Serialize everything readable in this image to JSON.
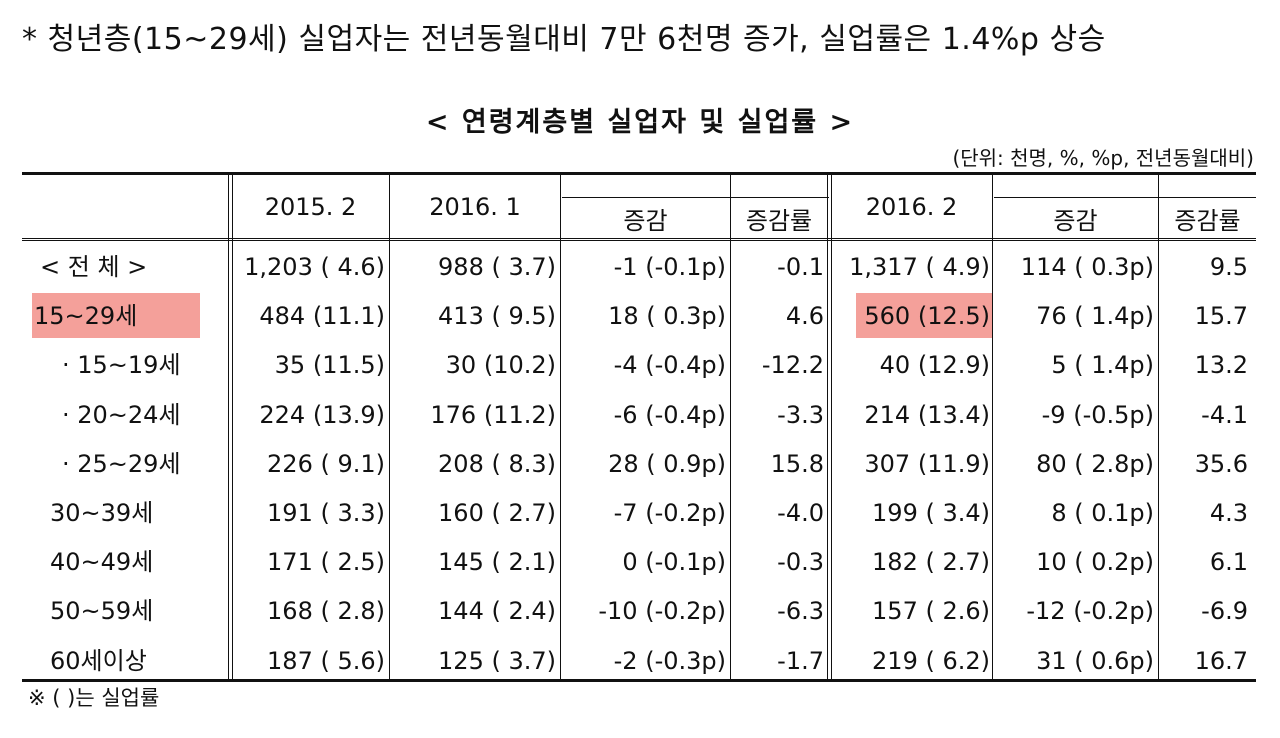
{
  "headline": "* 청년층(15~29세) 실업자는 전년동월대비 7만 6천명 증가, 실업률은 1.4%p 상승",
  "caption": "< 연령계층별 실업자 및 실업률 >",
  "unit_note": "(단위: 천명, %, %p, 전년동월대비)",
  "footnote": "※ (   )는 실업률",
  "columns": {
    "c2015_2": "2015. 2",
    "c2016_1": "2016. 1",
    "change": "증감",
    "change_rate": "증감률",
    "c2016_2": "2016. 2",
    "change2": "증감",
    "change_rate2": "증감률"
  },
  "highlight_color": "#f4a09a",
  "rows": [
    {
      "label": "< 전    체 >",
      "v2015": "1,203 ( 4.6)",
      "v2016_1": "988 ( 3.7)",
      "chg1": "-1 (-0.1p)",
      "rate1": "-0.1",
      "v2016_2": "1,317 ( 4.9)",
      "chg2": "114 ( 0.3p)",
      "rate2": "9.5"
    },
    {
      "label": "15~29세",
      "v2015": "484 (11.1)",
      "v2016_1": "413 ( 9.5)",
      "chg1": "18 ( 0.3p)",
      "rate1": "4.6",
      "v2016_2": "560 (12.5)",
      "chg2": "76 ( 1.4p)",
      "rate2": "15.7"
    },
    {
      "label": "· 15~19세",
      "v2015": "35 (11.5)",
      "v2016_1": "30 (10.2)",
      "chg1": "-4 (-0.4p)",
      "rate1": "-12.2",
      "v2016_2": "40 (12.9)",
      "chg2": "5 ( 1.4p)",
      "rate2": "13.2"
    },
    {
      "label": "· 20~24세",
      "v2015": "224 (13.9)",
      "v2016_1": "176 (11.2)",
      "chg1": "-6 (-0.4p)",
      "rate1": "-3.3",
      "v2016_2": "214 (13.4)",
      "chg2": "-9 (-0.5p)",
      "rate2": "-4.1"
    },
    {
      "label": "· 25~29세",
      "v2015": "226 ( 9.1)",
      "v2016_1": "208 ( 8.3)",
      "chg1": "28 ( 0.9p)",
      "rate1": "15.8",
      "v2016_2": "307 (11.9)",
      "chg2": "80 ( 2.8p)",
      "rate2": "35.6"
    },
    {
      "label": "30~39세",
      "v2015": "191 ( 3.3)",
      "v2016_1": "160 ( 2.7)",
      "chg1": "-7 (-0.2p)",
      "rate1": "-4.0",
      "v2016_2": "199 ( 3.4)",
      "chg2": "8 ( 0.1p)",
      "rate2": "4.3"
    },
    {
      "label": "40~49세",
      "v2015": "171 ( 2.5)",
      "v2016_1": "145 ( 2.1)",
      "chg1": "0 (-0.1p)",
      "rate1": "-0.3",
      "v2016_2": "182 ( 2.7)",
      "chg2": "10 ( 0.2p)",
      "rate2": "6.1"
    },
    {
      "label": "50~59세",
      "v2015": "168 ( 2.8)",
      "v2016_1": "144 ( 2.4)",
      "chg1": "-10 (-0.2p)",
      "rate1": "-6.3",
      "v2016_2": "157 ( 2.6)",
      "chg2": "-12 (-0.2p)",
      "rate2": "-6.9"
    },
    {
      "label": "60세이상",
      "v2015": "187 ( 5.6)",
      "v2016_1": "125 ( 3.7)",
      "chg1": "-2 (-0.3p)",
      "rate1": "-1.7",
      "v2016_2": "219 ( 6.2)",
      "chg2": "31 ( 0.6p)",
      "rate2": "16.7"
    }
  ]
}
